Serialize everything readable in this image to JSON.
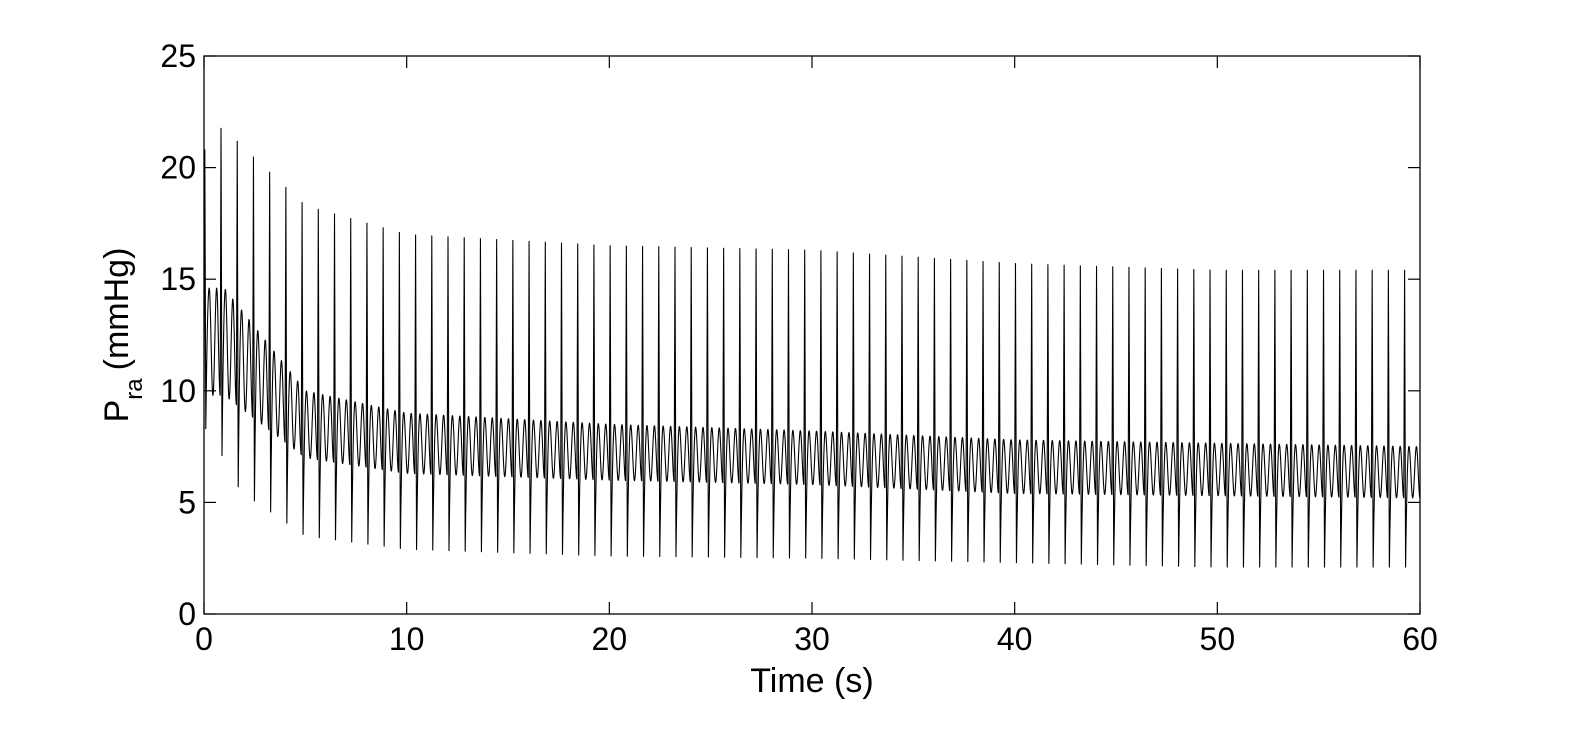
{
  "chart_data": {
    "type": "line",
    "xlabel": "Time (s)",
    "ylabel": {
      "main": "P",
      "subscript": "ra",
      "unit": "(mmHg)"
    },
    "xlim": [
      0,
      60
    ],
    "ylim": [
      0,
      25
    ],
    "xticks": [
      0,
      10,
      20,
      30,
      40,
      50,
      60
    ],
    "yticks": [
      0,
      5,
      10,
      15,
      20,
      25
    ],
    "grid": false,
    "box": true,
    "line_color": "#000000",
    "series": [
      {
        "period_s": 0.8,
        "sample_peaks": [
          {
            "t": 0.2,
            "y": 20.8
          },
          {
            "t": 1.0,
            "y": 22.0
          },
          {
            "t": 1.7,
            "y": 21.1
          },
          {
            "t": 5.0,
            "y": 18.3
          },
          {
            "t": 10.0,
            "y": 17.0
          },
          {
            "t": 20.0,
            "y": 16.5
          },
          {
            "t": 30.0,
            "y": 16.3
          },
          {
            "t": 40.0,
            "y": 15.7
          },
          {
            "t": 50.0,
            "y": 15.4
          },
          {
            "t": 60.0,
            "y": 15.4
          }
        ],
        "sample_troughs": [
          {
            "t": 0.2,
            "y": 8.3
          },
          {
            "t": 1.8,
            "y": 5.5
          },
          {
            "t": 5.0,
            "y": 3.5
          },
          {
            "t": 10.0,
            "y": 2.9
          },
          {
            "t": 20.0,
            "y": 2.6
          },
          {
            "t": 30.0,
            "y": 2.5
          },
          {
            "t": 40.0,
            "y": 2.3
          },
          {
            "t": 50.0,
            "y": 2.1
          },
          {
            "t": 60.0,
            "y": 2.1
          }
        ],
        "sample_secondary_wave": [
          {
            "t": 1.0,
            "y_high": 14.6,
            "y_low": 9.8
          },
          {
            "t": 5.0,
            "y_high": 10.0,
            "y_low": 7.0
          },
          {
            "t": 10.0,
            "y_high": 9.0,
            "y_low": 6.3
          },
          {
            "t": 20.0,
            "y_high": 8.5,
            "y_low": 6.0
          },
          {
            "t": 30.0,
            "y_high": 8.2,
            "y_low": 5.8
          },
          {
            "t": 40.0,
            "y_high": 7.8,
            "y_low": 5.4
          },
          {
            "t": 60.0,
            "y_high": 7.5,
            "y_low": 5.2
          }
        ]
      }
    ]
  }
}
